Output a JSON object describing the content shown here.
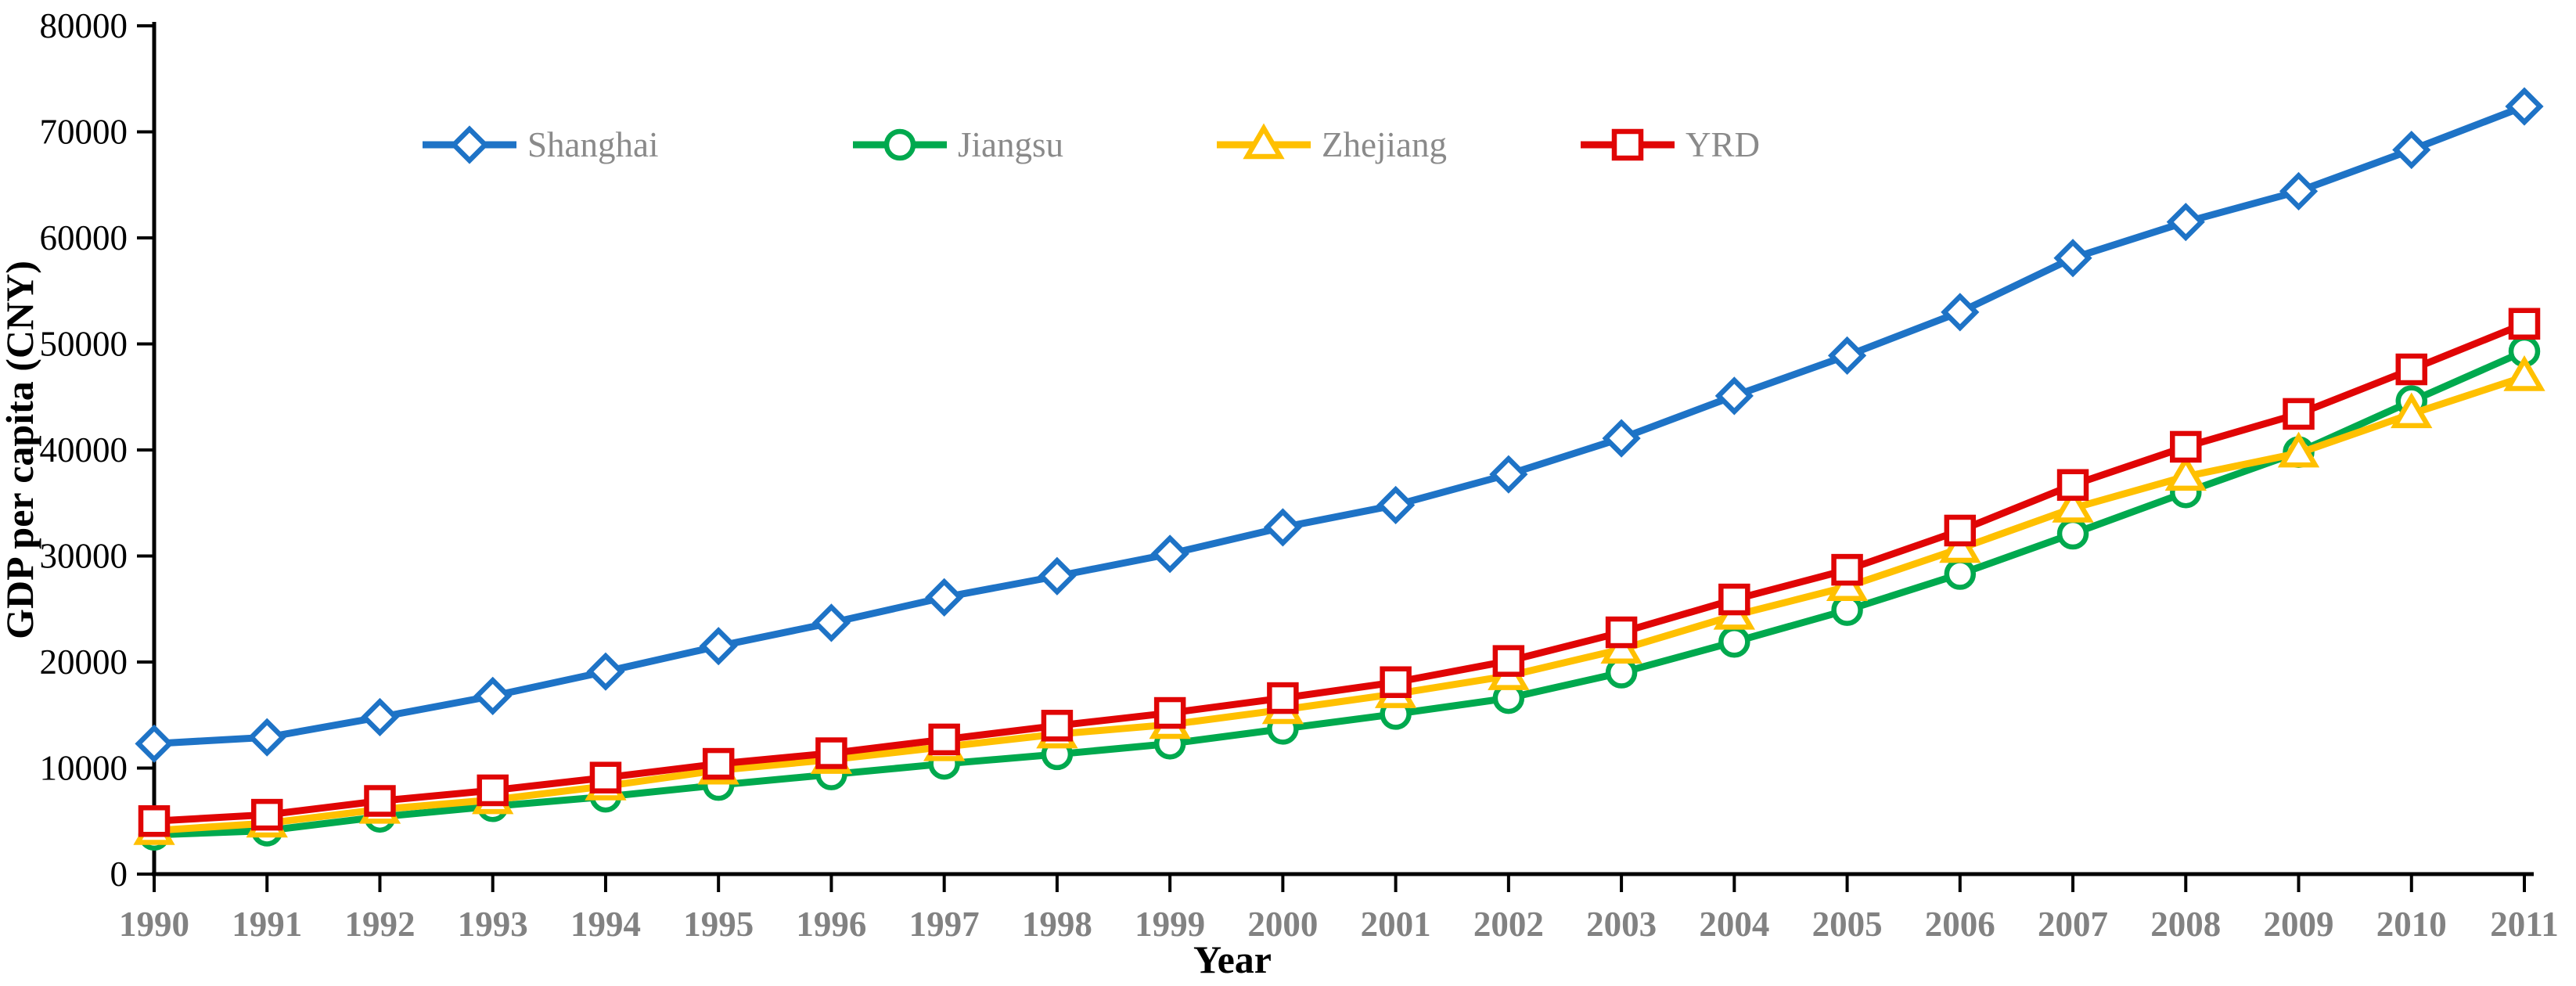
{
  "chart_data": {
    "type": "line",
    "title": "",
    "xlabel": "Year",
    "ylabel": "GDP per capita (CNY)",
    "x": [
      1990,
      1991,
      1992,
      1993,
      1994,
      1995,
      1996,
      1997,
      1998,
      1999,
      2000,
      2001,
      2002,
      2003,
      2004,
      2005,
      2006,
      2007,
      2008,
      2009,
      2010,
      2011
    ],
    "ylim": [
      0,
      80000
    ],
    "ytick_step": 10000,
    "grid": false,
    "legend_position": "top-inside-horizontal",
    "series": [
      {
        "name": "Shanghai",
        "color": "#1E73C6",
        "marker": "diamond",
        "values": [
          12300,
          12900,
          14800,
          16800,
          19100,
          21500,
          23700,
          26100,
          28100,
          30200,
          32700,
          34800,
          37700,
          41100,
          45100,
          48900,
          53000,
          58100,
          61500,
          64400,
          68300,
          72400
        ]
      },
      {
        "name": "Jiangsu",
        "color": "#00A94E",
        "marker": "circle",
        "values": [
          3700,
          4100,
          5400,
          6400,
          7300,
          8400,
          9400,
          10400,
          11300,
          12300,
          13700,
          15100,
          16600,
          19000,
          21900,
          24900,
          28300,
          32100,
          36000,
          39800,
          44600,
          49300
        ]
      },
      {
        "name": "Zhejiang",
        "color": "#FFC000",
        "marker": "triangle",
        "values": [
          4100,
          4800,
          6100,
          7000,
          8300,
          9800,
          10800,
          12000,
          13200,
          14100,
          15500,
          17000,
          18700,
          21200,
          24400,
          27100,
          30700,
          34500,
          37500,
          39700,
          43400,
          46900
        ]
      },
      {
        "name": "YRD",
        "color": "#E00505",
        "marker": "square",
        "values": [
          5000,
          5600,
          6900,
          7900,
          9100,
          10400,
          11400,
          12700,
          14000,
          15200,
          16600,
          18100,
          20100,
          22800,
          25900,
          28700,
          32400,
          36700,
          40300,
          43400,
          47600,
          51900
        ]
      }
    ]
  },
  "style": {
    "axis_color": "#000000",
    "ytick_label_color": "#000000",
    "xtick_label_color": "#828282",
    "legend_label_color": "#8a8a8a",
    "background": "#ffffff"
  }
}
